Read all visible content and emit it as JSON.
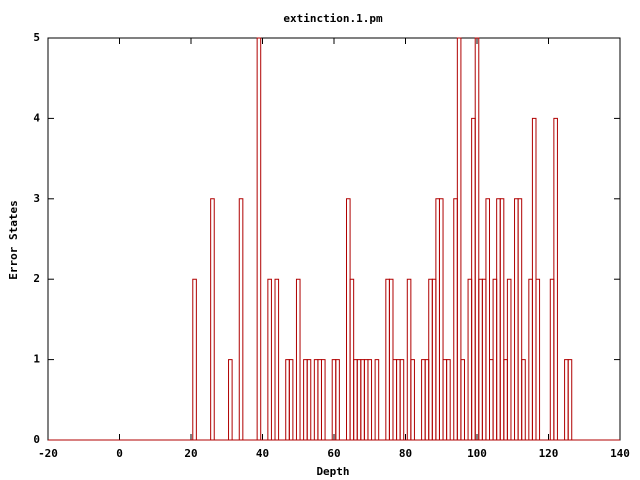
{
  "chart_data": {
    "type": "histeps",
    "title": "extinction.1.pm",
    "x_label": "Depth",
    "y_label": "Error States",
    "x": [
      21,
      26,
      31,
      34,
      39,
      42,
      44,
      47,
      48,
      50,
      52,
      53,
      55,
      56,
      57,
      60,
      61,
      64,
      65,
      66,
      67,
      68,
      69,
      70,
      72,
      75,
      76,
      77,
      78,
      79,
      81,
      82,
      85,
      86,
      87,
      88,
      89,
      90,
      91,
      92,
      94,
      95,
      96,
      98,
      99,
      100,
      101,
      102,
      103,
      104,
      105,
      106,
      107,
      108,
      109,
      111,
      112,
      113,
      115,
      116,
      117,
      121,
      122,
      125,
      126
    ],
    "values": [
      2,
      3,
      1,
      3,
      5,
      2,
      2,
      1,
      1,
      2,
      1,
      1,
      1,
      1,
      1,
      1,
      1,
      3,
      2,
      1,
      1,
      1,
      1,
      1,
      1,
      2,
      2,
      1,
      1,
      1,
      2,
      1,
      1,
      1,
      2,
      2,
      3,
      3,
      1,
      1,
      3,
      5,
      1,
      2,
      4,
      5,
      2,
      2,
      3,
      1,
      2,
      3,
      3,
      1,
      2,
      3,
      3,
      1,
      2,
      4,
      2,
      2,
      4,
      1,
      1
    ],
    "color": "#b00000",
    "xlim": [
      -20,
      140
    ],
    "xticks": [
      -20,
      0,
      20,
      40,
      60,
      80,
      100,
      120,
      140
    ],
    "ylim": [
      0,
      5
    ],
    "yticks": [
      0,
      1,
      2,
      3,
      4,
      5
    ]
  }
}
